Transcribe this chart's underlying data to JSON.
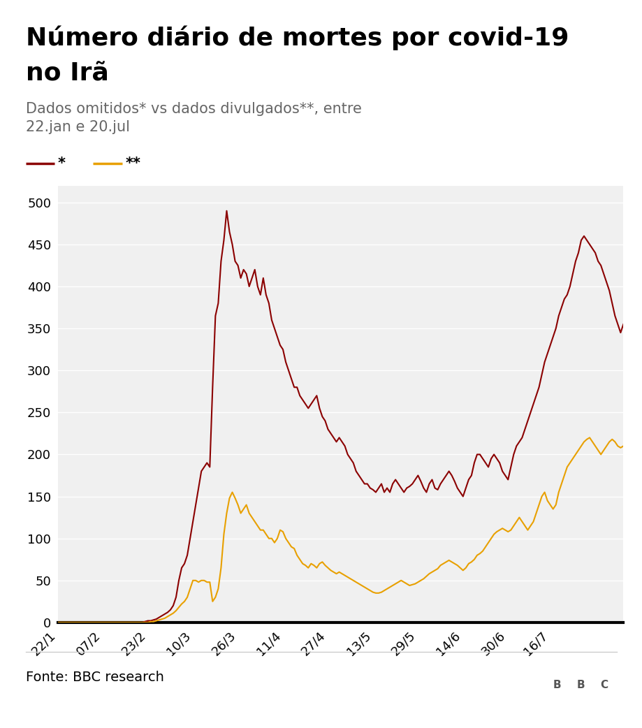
{
  "title_line1": "Número diário de mortes por covid-19",
  "title_line2": "no Irã",
  "subtitle": "Dados omitidos* vs dados divulgados**, entre\n22.jan e 20.jul",
  "legend_label1": "*",
  "legend_label2": "**",
  "color1": "#8B0000",
  "color2": "#E8A000",
  "ylim": [
    0,
    520
  ],
  "yticks": [
    0,
    50,
    100,
    150,
    200,
    250,
    300,
    350,
    400,
    450,
    500
  ],
  "xtick_labels": [
    "22/1",
    "07/2",
    "23/2",
    "10/3",
    "26/3",
    "11/4",
    "27/4",
    "13/5",
    "29/5",
    "14/6",
    "30/6",
    "16/7"
  ],
  "xtick_pos": [
    0,
    16,
    32,
    48,
    64,
    80,
    96,
    112,
    128,
    144,
    160,
    175
  ],
  "footer_text": "Fonte: BBC research",
  "series1": [
    0,
    0,
    0,
    0,
    0,
    0,
    0,
    0,
    0,
    0,
    0,
    0,
    0,
    0,
    0,
    0,
    0,
    0,
    0,
    0,
    0,
    0,
    0,
    0,
    0,
    0,
    0,
    0,
    0,
    0,
    0,
    1,
    2,
    2,
    3,
    4,
    6,
    8,
    10,
    12,
    15,
    20,
    30,
    50,
    65,
    70,
    80,
    100,
    120,
    140,
    160,
    180,
    185,
    190,
    185,
    280,
    365,
    380,
    430,
    455,
    490,
    465,
    450,
    430,
    425,
    410,
    420,
    415,
    400,
    410,
    420,
    400,
    390,
    410,
    390,
    380,
    360,
    350,
    340,
    330,
    325,
    310,
    300,
    290,
    280,
    280,
    270,
    265,
    260,
    255,
    260,
    265,
    270,
    255,
    245,
    240,
    230,
    225,
    220,
    215,
    220,
    215,
    210,
    200,
    195,
    190,
    180,
    175,
    170,
    165,
    165,
    160,
    158,
    155,
    160,
    165,
    155,
    160,
    155,
    165,
    170,
    165,
    160,
    155,
    160,
    162,
    165,
    170,
    175,
    168,
    160,
    155,
    165,
    170,
    160,
    158,
    165,
    170,
    175,
    180,
    175,
    168,
    160,
    155,
    150,
    160,
    170,
    175,
    190,
    200,
    200,
    195,
    190,
    185,
    195,
    200,
    195,
    190,
    180,
    175,
    170,
    185,
    200,
    210,
    215,
    220,
    230,
    240,
    250,
    260,
    270,
    280,
    295,
    310,
    320,
    330,
    340,
    350,
    365,
    375,
    385,
    390,
    400,
    415,
    430,
    440,
    455,
    460,
    455,
    450,
    445,
    440,
    430,
    425,
    415,
    405,
    395,
    380,
    365,
    355,
    345,
    355
  ],
  "series2": [
    0,
    0,
    0,
    0,
    0,
    0,
    0,
    0,
    0,
    0,
    0,
    0,
    0,
    0,
    0,
    0,
    0,
    0,
    0,
    0,
    0,
    0,
    0,
    0,
    0,
    0,
    0,
    0,
    0,
    0,
    0,
    0,
    0,
    1,
    1,
    2,
    3,
    4,
    5,
    7,
    9,
    11,
    14,
    18,
    22,
    25,
    30,
    40,
    50,
    50,
    48,
    50,
    50,
    48,
    48,
    25,
    30,
    40,
    65,
    105,
    130,
    148,
    155,
    148,
    140,
    130,
    135,
    140,
    130,
    125,
    120,
    115,
    110,
    110,
    105,
    100,
    100,
    95,
    100,
    110,
    108,
    100,
    95,
    90,
    88,
    80,
    75,
    70,
    68,
    65,
    70,
    68,
    65,
    70,
    72,
    68,
    65,
    62,
    60,
    58,
    60,
    58,
    56,
    54,
    52,
    50,
    48,
    46,
    44,
    42,
    40,
    38,
    36,
    35,
    35,
    36,
    38,
    40,
    42,
    44,
    46,
    48,
    50,
    48,
    46,
    44,
    45,
    46,
    48,
    50,
    52,
    55,
    58,
    60,
    62,
    64,
    68,
    70,
    72,
    74,
    72,
    70,
    68,
    65,
    62,
    65,
    70,
    72,
    75,
    80,
    82,
    85,
    90,
    95,
    100,
    105,
    108,
    110,
    112,
    110,
    108,
    110,
    115,
    120,
    125,
    120,
    115,
    110,
    115,
    120,
    130,
    140,
    150,
    155,
    145,
    140,
    135,
    140,
    155,
    165,
    175,
    185,
    190,
    195,
    200,
    205,
    210,
    215,
    218,
    220,
    215,
    210,
    205,
    200,
    205,
    210,
    215,
    218,
    215,
    210,
    208,
    210
  ]
}
